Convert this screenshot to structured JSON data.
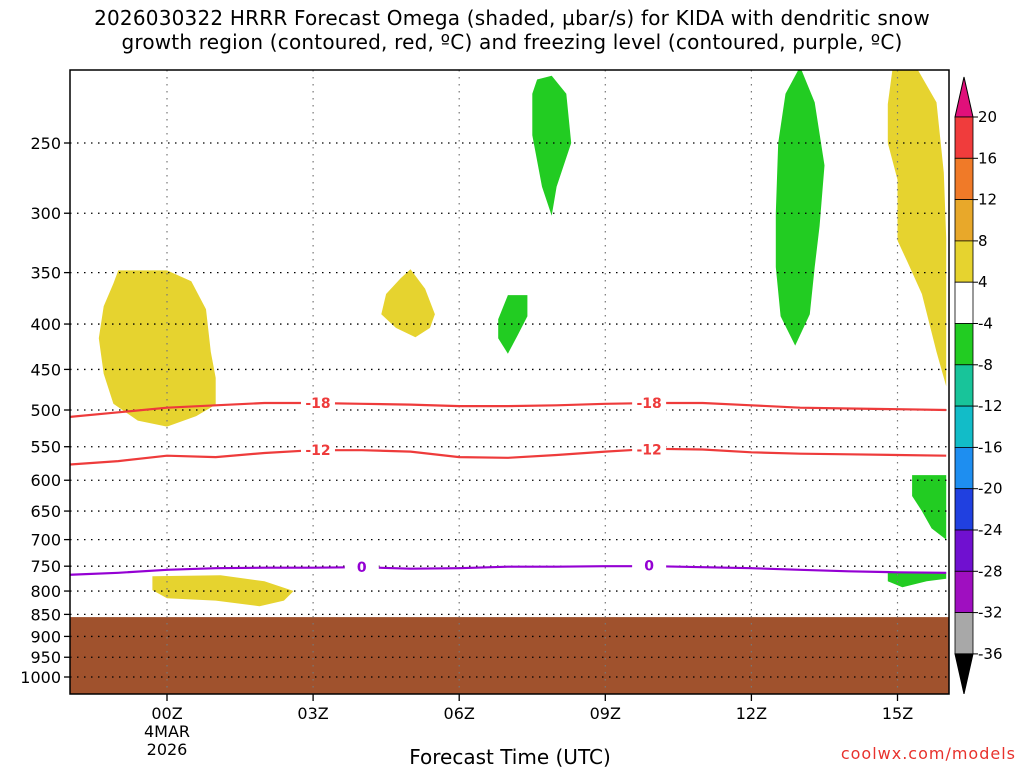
{
  "title": {
    "line1": "2026030322 HRRR Forecast Omega (shaded, µbar/s) for KIDA with dendritic snow",
    "line2": "growth region (contoured, red, ºC) and freezing level (contoured, purple, ºC)"
  },
  "credit": "coolwx.com/models",
  "chart_data": {
    "type": "heatmap",
    "xlabel": "Forecast Time (UTC)",
    "x_ticks": [
      {
        "x": 0,
        "label": "00Z",
        "sub": [
          "4MAR",
          "2026"
        ]
      },
      {
        "x": 3,
        "label": "03Z"
      },
      {
        "x": 6,
        "label": "06Z"
      },
      {
        "x": 9,
        "label": "09Z"
      },
      {
        "x": 12,
        "label": "12Z"
      },
      {
        "x": 15,
        "label": "15Z"
      }
    ],
    "x_range": [
      -2,
      16
    ],
    "y_axis": "pressure (hPa), reversed",
    "y_range": [
      200,
      1070
    ],
    "y_ticks": [
      250,
      300,
      350,
      400,
      450,
      500,
      550,
      600,
      650,
      700,
      750,
      800,
      850,
      900,
      950,
      1000
    ],
    "grid": true,
    "colorbar": {
      "ticks": [
        "20",
        "16",
        "12",
        "8",
        "4",
        "-4",
        "-8",
        "-12",
        "-16",
        "-20",
        "-24",
        "-28",
        "-32",
        "-36"
      ],
      "colors": [
        "#e0107a",
        "#f03c3c",
        "#f07a28",
        "#e8a82a",
        "#e6d32f",
        "#ffffff",
        "#22cc22",
        "#18c49a",
        "#12bcc8",
        "#1e8ef0",
        "#2040e0",
        "#7010d0",
        "#9f0fc0",
        "#a8a8a8",
        "#000000"
      ]
    },
    "series": [
      {
        "name": "-18",
        "kind": "contour",
        "color": "#ee3b3b",
        "labels": [
          {
            "x": 3.1,
            "y": 491
          },
          {
            "x": 9.9,
            "y": 491
          }
        ],
        "points": [
          [
            -2,
            509
          ],
          [
            -1,
            503
          ],
          [
            0,
            497
          ],
          [
            1,
            494
          ],
          [
            2,
            491
          ],
          [
            3,
            491
          ],
          [
            4,
            492
          ],
          [
            5,
            493
          ],
          [
            6,
            495
          ],
          [
            7,
            495
          ],
          [
            8,
            494
          ],
          [
            9,
            492
          ],
          [
            10,
            491
          ],
          [
            11,
            491
          ],
          [
            12,
            494
          ],
          [
            13,
            497
          ],
          [
            14,
            498
          ],
          [
            15,
            499
          ],
          [
            16,
            500
          ]
        ]
      },
      {
        "name": "-12",
        "kind": "contour",
        "color": "#ee3b3b",
        "labels": [
          {
            "x": 3.1,
            "y": 555
          },
          {
            "x": 9.9,
            "y": 554
          }
        ],
        "points": [
          [
            -2,
            576
          ],
          [
            -1,
            571
          ],
          [
            0,
            563
          ],
          [
            1,
            565
          ],
          [
            2,
            559
          ],
          [
            3,
            555
          ],
          [
            4,
            555
          ],
          [
            5,
            557
          ],
          [
            6,
            565
          ],
          [
            7,
            566
          ],
          [
            8,
            562
          ],
          [
            9,
            557
          ],
          [
            10,
            553
          ],
          [
            11,
            554
          ],
          [
            12,
            558
          ],
          [
            13,
            560
          ],
          [
            14,
            561
          ],
          [
            15,
            562
          ],
          [
            16,
            563
          ]
        ]
      },
      {
        "name": "0",
        "kind": "contour",
        "color": "#9400d3",
        "labels": [
          {
            "x": 4,
            "y": 752
          },
          {
            "x": 9.9,
            "y": 749
          }
        ],
        "points": [
          [
            -2,
            767
          ],
          [
            -1,
            763
          ],
          [
            0,
            757
          ],
          [
            1,
            754
          ],
          [
            2,
            753
          ],
          [
            3,
            753
          ],
          [
            4,
            752
          ],
          [
            5,
            755
          ],
          [
            6,
            754
          ],
          [
            7,
            751
          ],
          [
            8,
            751
          ],
          [
            9,
            750
          ],
          [
            10,
            750
          ],
          [
            11,
            752
          ],
          [
            12,
            754
          ],
          [
            13,
            757
          ],
          [
            14,
            760
          ],
          [
            15,
            762
          ],
          [
            16,
            763
          ]
        ]
      }
    ],
    "regions": [
      {
        "fill": "yellow",
        "value": "4 to 8",
        "points": [
          [
            -1.0,
            348
          ],
          [
            0.0,
            348
          ],
          [
            0.5,
            358
          ],
          [
            0.8,
            385
          ],
          [
            0.9,
            430
          ],
          [
            1.0,
            460
          ],
          [
            1.0,
            493
          ],
          [
            0.6,
            508
          ],
          [
            0.0,
            522
          ],
          [
            -0.6,
            514
          ],
          [
            -1.1,
            492
          ],
          [
            -1.3,
            455
          ],
          [
            -1.4,
            415
          ],
          [
            -1.3,
            382
          ],
          [
            -1.1,
            360
          ]
        ]
      },
      {
        "fill": "yellow",
        "value": "4 to 8",
        "points": [
          [
            5.0,
            347
          ],
          [
            5.3,
            365
          ],
          [
            5.5,
            390
          ],
          [
            5.4,
            404
          ],
          [
            5.1,
            414
          ],
          [
            4.7,
            404
          ],
          [
            4.4,
            390
          ],
          [
            4.5,
            370
          ],
          [
            4.8,
            355
          ]
        ]
      },
      {
        "fill": "yellow",
        "value": "4 to 8",
        "points": [
          [
            -0.3,
            770
          ],
          [
            1.1,
            768
          ],
          [
            2.0,
            780
          ],
          [
            2.6,
            800
          ],
          [
            2.4,
            820
          ],
          [
            1.9,
            832
          ],
          [
            1.0,
            820
          ],
          [
            0.0,
            815
          ],
          [
            -0.3,
            798
          ]
        ]
      },
      {
        "fill": "yellow",
        "value": "4 to 8",
        "points": [
          [
            14.9,
            206
          ],
          [
            15.4,
            206
          ],
          [
            15.8,
            225
          ],
          [
            15.95,
            270
          ],
          [
            16.0,
            320
          ],
          [
            16.0,
            470
          ],
          [
            15.8,
            430
          ],
          [
            15.5,
            370
          ],
          [
            15.2,
            340
          ],
          [
            15.0,
            322
          ],
          [
            15.0,
            275
          ],
          [
            14.8,
            250
          ],
          [
            14.8,
            226
          ]
        ]
      },
      {
        "fill": "green",
        "value": "-4 to -8",
        "points": [
          [
            7.6,
            212
          ],
          [
            7.9,
            210
          ],
          [
            8.2,
            220
          ],
          [
            8.3,
            250
          ],
          [
            8.0,
            280
          ],
          [
            7.9,
            302
          ],
          [
            7.7,
            280
          ],
          [
            7.5,
            245
          ],
          [
            7.5,
            220
          ]
        ]
      },
      {
        "fill": "green",
        "value": "-4 to -8",
        "points": [
          [
            7.0,
            371
          ],
          [
            7.4,
            371
          ],
          [
            7.4,
            392
          ],
          [
            7.2,
            412
          ],
          [
            7.0,
            432
          ],
          [
            6.8,
            415
          ],
          [
            6.8,
            395
          ]
        ]
      },
      {
        "fill": "green",
        "value": "-4 to -8",
        "points": [
          [
            13.0,
            205
          ],
          [
            13.3,
            225
          ],
          [
            13.5,
            265
          ],
          [
            13.4,
            310
          ],
          [
            13.3,
            345
          ],
          [
            13.2,
            390
          ],
          [
            12.9,
            423
          ],
          [
            12.6,
            392
          ],
          [
            12.5,
            345
          ],
          [
            12.5,
            300
          ],
          [
            12.55,
            250
          ],
          [
            12.7,
            220
          ]
        ]
      },
      {
        "fill": "green",
        "value": "-4 to -8",
        "points": [
          [
            15.3,
            592
          ],
          [
            16.0,
            592
          ],
          [
            16.0,
            700
          ],
          [
            15.7,
            680
          ],
          [
            15.5,
            650
          ],
          [
            15.3,
            625
          ]
        ]
      },
      {
        "fill": "green",
        "value": "-4 to -8",
        "points": [
          [
            14.8,
            762
          ],
          [
            16.0,
            762
          ],
          [
            16.0,
            775
          ],
          [
            15.6,
            780
          ],
          [
            15.1,
            792
          ],
          [
            14.8,
            780
          ]
        ]
      }
    ],
    "terrain": {
      "fill": "#a0522d",
      "top_hpa": 856
    }
  }
}
